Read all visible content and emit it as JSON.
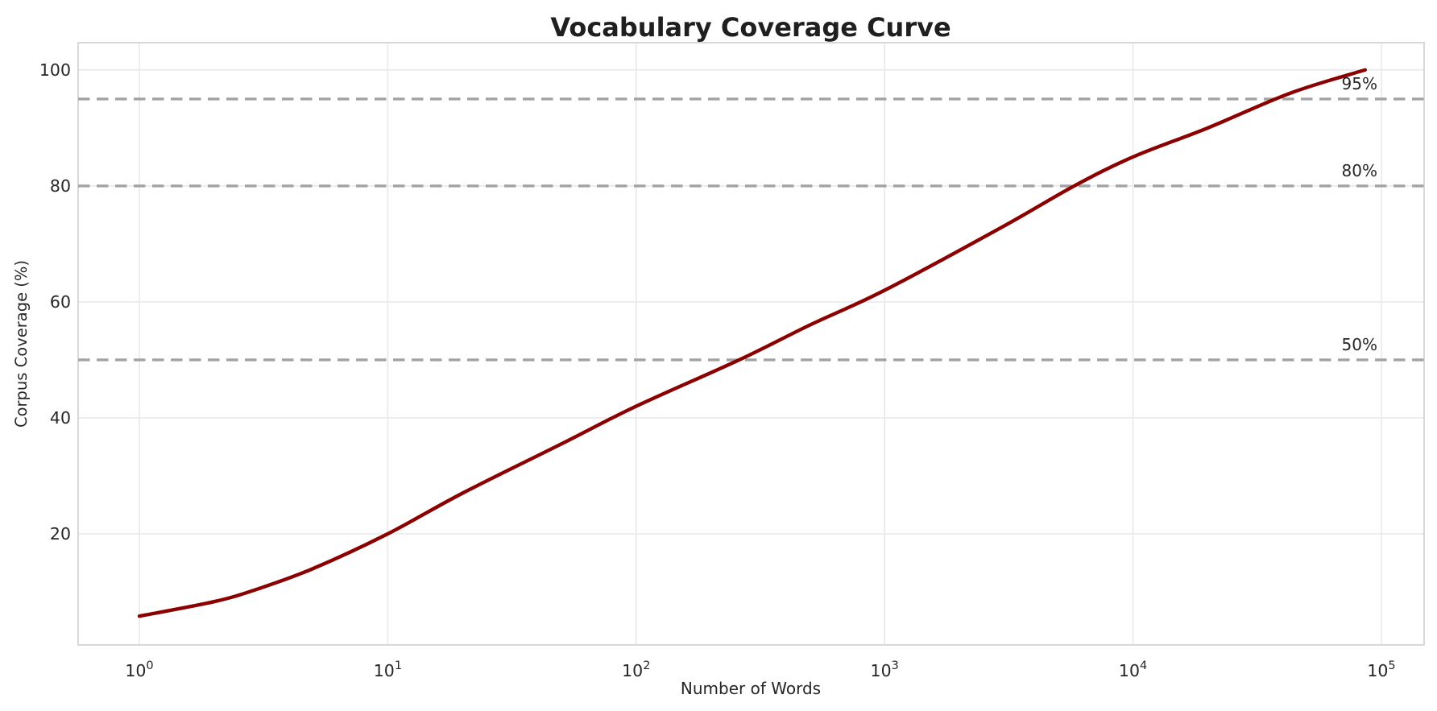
{
  "figure": {
    "background": "#ffffff"
  },
  "chart_data": {
    "type": "line",
    "title": "Vocabulary Coverage Curve",
    "xlabel": "Number of Words",
    "ylabel": "Corpus Coverage (%)",
    "x_scale": "log",
    "grid": true,
    "legend": false,
    "xlim": [
      0.567,
      148600
    ],
    "ylim": [
      0.83,
      104.7
    ],
    "x_tick_base": "10",
    "x_tick_exponents": [
      "0",
      "1",
      "2",
      "3",
      "4",
      "5"
    ],
    "y_ticks": [
      20,
      40,
      60,
      80,
      100
    ],
    "series": [
      {
        "name": "vocabulary-coverage",
        "color": "#8b0000",
        "line_width": 4.4,
        "x": [
          1,
          2,
          3,
          5,
          10,
          20,
          50,
          100,
          260,
          500,
          1000,
          3000,
          5800,
          10000,
          20000,
          43000,
          86000
        ],
        "y": [
          5.8,
          8.3,
          10.5,
          14,
          20,
          27,
          35.5,
          42,
          50,
          56,
          62,
          73,
          80,
          85,
          90,
          96,
          100
        ]
      }
    ],
    "reference_lines": [
      {
        "value": 50,
        "label": "50%"
      },
      {
        "value": 80,
        "label": "80%"
      },
      {
        "value": 95,
        "label": "95%"
      }
    ],
    "reference_style": {
      "color": "#a2a2a2",
      "dash": "14.5 8.5",
      "width": 3.4
    },
    "colors": {
      "grid": "#e9e9e9",
      "spine": "#d4d4d4",
      "text": "#262626",
      "title": "#1f1f1f",
      "background": "#ffffff"
    }
  }
}
